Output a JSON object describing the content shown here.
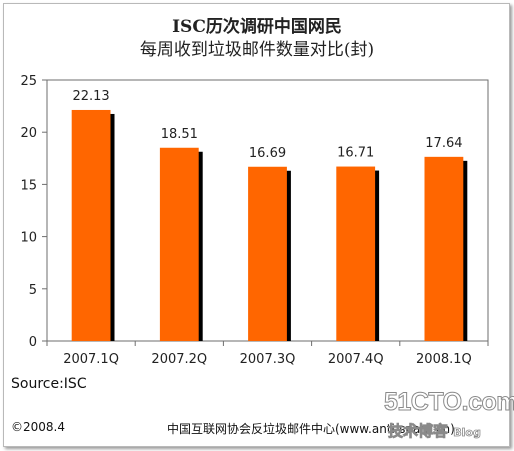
{
  "header": {
    "title_line_1": "ISC历次调研中国网民",
    "title_line_2": "每周收到垃圾邮件数量对比(封)"
  },
  "chart_data": {
    "type": "bar",
    "categories": [
      "2007.1Q",
      "2007.2Q",
      "2007.3Q",
      "2007.4Q",
      "2008.1Q"
    ],
    "values": [
      22.13,
      18.51,
      16.69,
      16.71,
      17.64
    ],
    "data_labels": [
      "22.13",
      "18.51",
      "16.69",
      "16.71",
      "17.64"
    ],
    "yticks": [
      "0",
      "5",
      "10",
      "15",
      "20",
      "25"
    ],
    "ylim": [
      0,
      25
    ],
    "grid": false,
    "legend": "none",
    "colors": {
      "bar": "#ff6600",
      "bar_shadow": "#000000",
      "plot_border": "#6e6e6e"
    }
  },
  "footer": {
    "source": "Source:ISC",
    "date": "©2008.4",
    "org": "中国互联网协会反垃圾邮件中心(www.anti-spam.cn)"
  },
  "watermark": {
    "site": "51CTO.com",
    "sub": "技术博客",
    "tag": "Blog"
  }
}
